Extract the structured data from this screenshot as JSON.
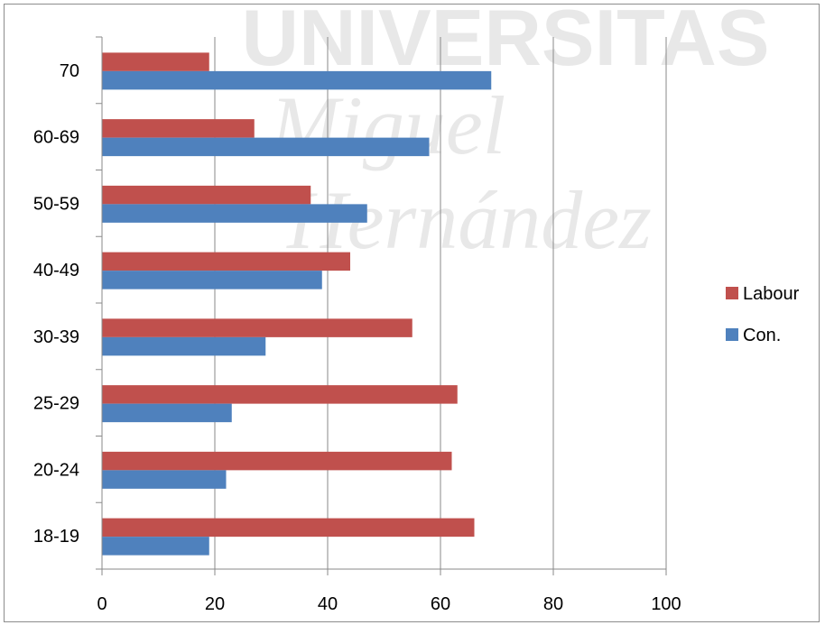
{
  "chart_data": {
    "type": "bar",
    "orientation": "horizontal",
    "categories": [
      "18-19",
      "20-24",
      "25-29",
      "30-39",
      "40-49",
      "50-59",
      "60-69",
      "70"
    ],
    "series": [
      {
        "name": "Con.",
        "color": "#4F81BD",
        "values": [
          19,
          22,
          23,
          29,
          39,
          47,
          58,
          69
        ]
      },
      {
        "name": "Labour",
        "color": "#C0504D",
        "values": [
          66,
          62,
          63,
          55,
          44,
          37,
          27,
          19
        ]
      }
    ],
    "xlim": [
      0,
      100
    ],
    "xticks": [
      0,
      20,
      40,
      60,
      80,
      100
    ],
    "xtick_labels": [
      "0",
      "20",
      "40",
      "60",
      "80",
      "100"
    ],
    "grid": "vertical",
    "legend": {
      "placement": "right",
      "entries": [
        "Labour",
        "Con."
      ]
    },
    "title": "",
    "xlabel": "",
    "ylabel": ""
  },
  "watermark": {
    "lines": [
      "UNIVERSITAS",
      "Miguel",
      "Hernández"
    ]
  }
}
